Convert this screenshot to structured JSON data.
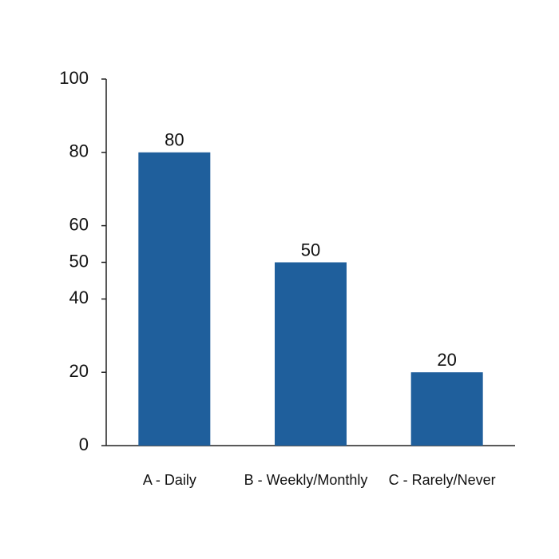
{
  "chart_data": {
    "type": "bar",
    "categories": [
      "A - Daily",
      "B - Weekly/Monthly",
      "C - Rarely/Never"
    ],
    "values": [
      80,
      50,
      20
    ],
    "color": "#1f5f9c",
    "ylim": [
      0,
      100
    ],
    "yticks": [
      0,
      20,
      40,
      50,
      60,
      80,
      100
    ],
    "grid": false
  }
}
